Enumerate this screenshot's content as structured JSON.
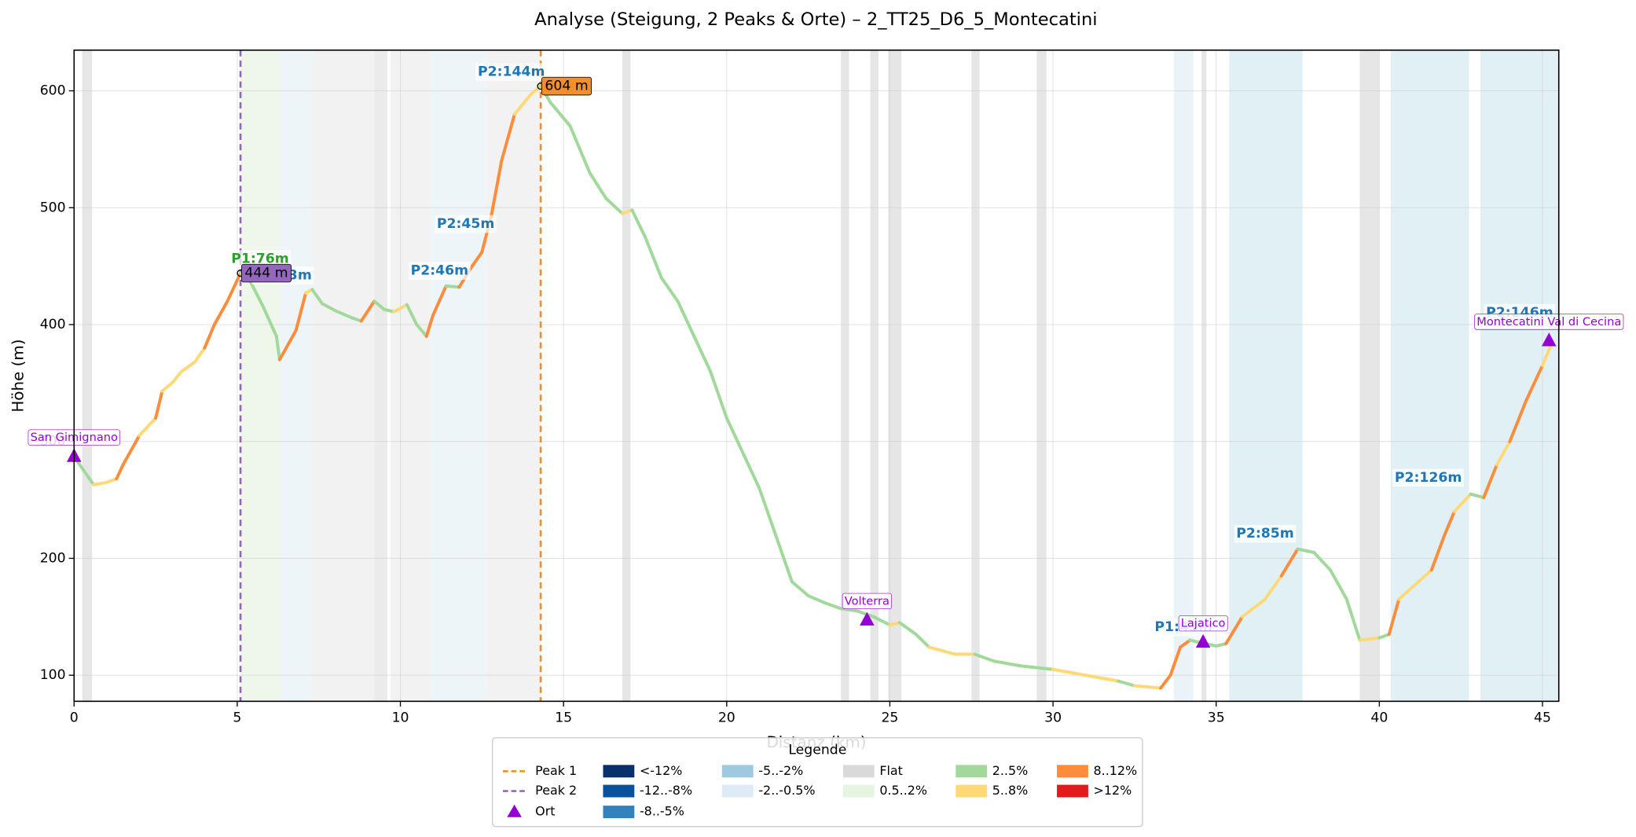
{
  "chart_data": {
    "type": "elevation_profile",
    "title": "Analyse (Steigung, 2 Peaks & Orte) – 2_TT25_D6_5_Montecatini",
    "x_label": "Distanz (km)",
    "y_label": "Höhe (m)",
    "xlim": [
      0,
      45.5
    ],
    "ylim": [
      77.7,
      634.8
    ],
    "xticks": [
      0,
      5,
      10,
      15,
      20,
      25,
      30,
      35,
      40,
      45
    ],
    "yticks": [
      100,
      200,
      300,
      400,
      500,
      600
    ],
    "grid": true,
    "profile": {
      "x": [
        0,
        0.3,
        0.6,
        1.0,
        1.3,
        1.5,
        2.0,
        2.5,
        2.7,
        3.0,
        3.3,
        3.7,
        4.0,
        4.3,
        4.7,
        5.1,
        5.4,
        5.8,
        6.2,
        6.3,
        6.8,
        7.1,
        7.3,
        7.6,
        8.0,
        8.5,
        8.8,
        9.2,
        9.5,
        9.8,
        10.2,
        10.5,
        10.8,
        11.0,
        11.4,
        11.8,
        12.2,
        12.5,
        12.8,
        13.1,
        13.5,
        14.0,
        14.3,
        14.6,
        15.2,
        15.8,
        16.3,
        16.8,
        17.1,
        17.5,
        18.0,
        18.5,
        19.0,
        19.5,
        20.0,
        20.5,
        21.0,
        21.5,
        22.0,
        22.5,
        23.0,
        23.5,
        24.0,
        24.5,
        25.0,
        25.3,
        25.8,
        26.2,
        27.0,
        27.6,
        28.2,
        29.0,
        30.0,
        31.0,
        32.0,
        32.5,
        33.3,
        33.6,
        33.9,
        34.2,
        34.5,
        35.0,
        35.3,
        35.8,
        36.5,
        37.0,
        37.5,
        38.0,
        38.5,
        39.0,
        39.4,
        40.0,
        40.3,
        40.6,
        41.2,
        41.6,
        42.0,
        42.3,
        42.8,
        43.2,
        43.6,
        44.0,
        44.5,
        45.0,
        45.3
      ],
      "y": [
        287,
        275,
        263,
        265,
        268,
        280,
        305,
        320,
        343,
        350,
        360,
        368,
        380,
        400,
        420,
        444,
        437,
        415,
        390,
        370,
        395,
        427,
        430,
        418,
        412,
        406,
        403,
        420,
        413,
        411,
        417,
        400,
        390,
        408,
        433,
        432,
        450,
        462,
        495,
        540,
        580,
        597,
        604,
        590,
        570,
        530,
        508,
        495,
        498,
        475,
        440,
        420,
        390,
        360,
        320,
        290,
        260,
        220,
        180,
        168,
        162,
        157,
        155,
        150,
        143,
        145,
        135,
        124,
        118,
        118,
        112,
        108,
        105,
        100,
        95,
        91,
        89,
        100,
        124,
        130,
        128,
        125,
        127,
        150,
        165,
        185,
        208,
        205,
        190,
        165,
        130,
        132,
        135,
        165,
        180,
        190,
        220,
        240,
        255,
        252,
        280,
        300,
        335,
        365,
        385
      ],
      "segment_colors": [
        "#a1d99b",
        "#a1d99b",
        "#fed976",
        "#fed976",
        "#fd8d3c",
        "#fd8d3c",
        "#fed976",
        "#fd8d3c",
        "#fed976",
        "#fed976",
        "#fed976",
        "#fed976",
        "#fd8d3c",
        "#fd8d3c",
        "#fd8d3c",
        "#a1d99b",
        "#a1d99b",
        "#a1d99b",
        "#a1d99b",
        "#fd8d3c",
        "#fd8d3c",
        "#fed976",
        "#a1d99b",
        "#a1d99b",
        "#a1d99b",
        "#a1d99b",
        "#fd8d3c",
        "#a1d99b",
        "#a1d99b",
        "#fed976",
        "#a1d99b",
        "#a1d99b",
        "#fd8d3c",
        "#fd8d3c",
        "#a1d99b",
        "#fd8d3c",
        "#fd8d3c",
        "#fd8d3c",
        "#fd8d3c",
        "#fd8d3c",
        "#fed976",
        "#fed976",
        "#a1d99b",
        "#a1d99b",
        "#a1d99b",
        "#a1d99b",
        "#a1d99b",
        "#fed976",
        "#a1d99b",
        "#a1d99b",
        "#a1d99b",
        "#a1d99b",
        "#a1d99b",
        "#a1d99b",
        "#a1d99b",
        "#a1d99b",
        "#a1d99b",
        "#a1d99b",
        "#a1d99b",
        "#a1d99b",
        "#a1d99b",
        "#a1d99b",
        "#a1d99b",
        "#a1d99b",
        "#fed976",
        "#a1d99b",
        "#a1d99b",
        "#fed976",
        "#fed976",
        "#a1d99b",
        "#a1d99b",
        "#a1d99b",
        "#fed976",
        "#fed976",
        "#a1d99b",
        "#fed976",
        "#fd8d3c",
        "#fd8d3c",
        "#fd8d3c",
        "#a1d99b",
        "#a1d99b",
        "#a1d99b",
        "#fd8d3c",
        "#fed976",
        "#fed976",
        "#fd8d3c",
        "#a1d99b",
        "#a1d99b",
        "#a1d99b",
        "#a1d99b",
        "#fed976",
        "#a1d99b",
        "#fd8d3c",
        "#fed976",
        "#fed976",
        "#fd8d3c",
        "#fd8d3c",
        "#fed976",
        "#a1d99b",
        "#fd8d3c",
        "#fed976",
        "#fd8d3c",
        "#fd8d3c",
        "#fed976"
      ]
    },
    "bands": [
      {
        "x0": 0.25,
        "x1": 0.55,
        "color": "#e6e6e6"
      },
      {
        "x0": 5.1,
        "x1": 6.3,
        "color": "#eef7ea"
      },
      {
        "x0": 6.3,
        "x1": 7.3,
        "color": "#edf5f8"
      },
      {
        "x0": 7.3,
        "x1": 8.0,
        "color": "#f2f2f2"
      },
      {
        "x0": 8.0,
        "x1": 9.2,
        "color": "#f2f2f2"
      },
      {
        "x0": 9.2,
        "x1": 9.6,
        "color": "#ebebeb"
      },
      {
        "x0": 9.7,
        "x1": 10.9,
        "color": "#f2f2f2"
      },
      {
        "x0": 10.9,
        "x1": 12.6,
        "color": "#edf5f8"
      },
      {
        "x0": 12.6,
        "x1": 14.3,
        "color": "#f2f2f2"
      },
      {
        "x0": 16.8,
        "x1": 17.05,
        "color": "#e6e6e6"
      },
      {
        "x0": 23.5,
        "x1": 23.75,
        "color": "#e6e6e6"
      },
      {
        "x0": 24.4,
        "x1": 24.65,
        "color": "#e6e6e6"
      },
      {
        "x0": 24.95,
        "x1": 25.35,
        "color": "#e6e6e6"
      },
      {
        "x0": 27.5,
        "x1": 27.75,
        "color": "#e6e6e6"
      },
      {
        "x0": 29.5,
        "x1": 29.8,
        "color": "#e6e6e6"
      },
      {
        "x0": 33.7,
        "x1": 34.3,
        "color": "#eaf4f8"
      },
      {
        "x0": 34.55,
        "x1": 34.7,
        "color": "#e6e6e6"
      },
      {
        "x0": 35.4,
        "x1": 37.65,
        "color": "#e1f0f4"
      },
      {
        "x0": 39.4,
        "x1": 40.0,
        "color": "#e6e6e6"
      },
      {
        "x0": 40.35,
        "x1": 42.75,
        "color": "#e1f0f4"
      },
      {
        "x0": 43.1,
        "x1": 45.5,
        "color": "#e1f0f4"
      }
    ],
    "peaks": [
      {
        "name": "Peak 1",
        "x": 14.3,
        "value": 604,
        "value_label": "604 m",
        "color": "#f28e2b"
      },
      {
        "name": "Peak 2",
        "x": 5.1,
        "value": 444,
        "value_label": "444 m",
        "color": "#9467bd"
      }
    ],
    "places": {
      "name": "Ort",
      "color": "#9400d3",
      "items": [
        {
          "name": "San Gimignano",
          "x": 0,
          "y": 287
        },
        {
          "name": "Volterra",
          "x": 24.3,
          "y": 147
        },
        {
          "name": "Lajatico",
          "x": 34.6,
          "y": 128
        },
        {
          "name": "Montecatini Val di Cecina",
          "x": 45.2,
          "y": 386
        }
      ]
    },
    "climbs": [
      {
        "label": "P2:144m",
        "x": 13.4,
        "y": 616,
        "color": "#1f77b4"
      },
      {
        "label": "P2:45m",
        "x": 12.0,
        "y": 486,
        "color": "#1f77b4"
      },
      {
        "label": "P2:46m",
        "x": 11.2,
        "y": 446,
        "color": "#1f77b4"
      },
      {
        "label": "P1:63m",
        "x": 6.4,
        "y": 442,
        "color": "#1f77b4"
      },
      {
        "label": "P1:76m",
        "x": 5.7,
        "y": 456,
        "color": "#2ca02c"
      },
      {
        "label": "P2:85m",
        "x": 36.5,
        "y": 221,
        "color": "#1f77b4"
      },
      {
        "label": "P2:126m",
        "x": 41.5,
        "y": 269,
        "color": "#1f77b4"
      },
      {
        "label": "P2:146m",
        "x": 44.3,
        "y": 410,
        "color": "#1f77b4"
      },
      {
        "label": "P1:43m",
        "x": 34.0,
        "y": 141,
        "color": "#1f77b4"
      }
    ],
    "legend": {
      "title": "Legende",
      "location": "lower center",
      "classes": [
        {
          "name": "<-12%",
          "color": "#08306b"
        },
        {
          "name": "-12..-8%",
          "color": "#08519c"
        },
        {
          "name": "-8..-5%",
          "color": "#3182bd"
        },
        {
          "name": "-5..-2%",
          "color": "#9ecae1"
        },
        {
          "name": "-2..-0.5%",
          "color": "#deebf7"
        },
        {
          "name": "Flat",
          "color": "#d9d9d9"
        },
        {
          "name": "0.5..2%",
          "color": "#e5f5e0"
        },
        {
          "name": "2..5%",
          "color": "#a1d99b"
        },
        {
          "name": "5..8%",
          "color": "#fed976"
        },
        {
          "name": "8..12%",
          "color": "#fd8d3c"
        },
        {
          "name": ">12%",
          "color": "#e31a1c"
        }
      ]
    }
  }
}
